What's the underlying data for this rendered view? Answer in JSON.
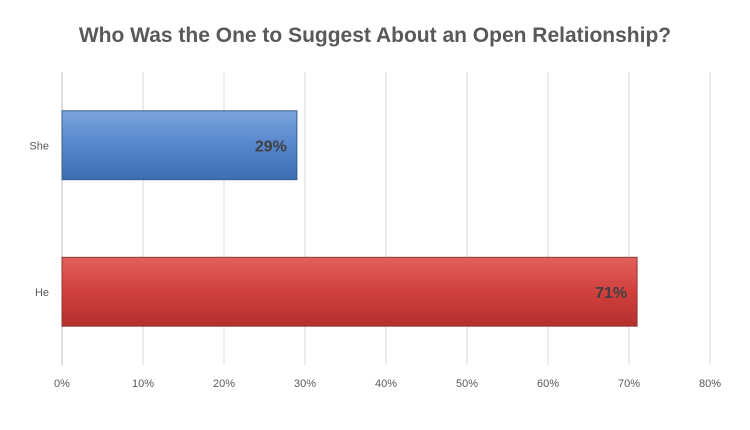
{
  "chart_data": {
    "type": "bar",
    "orientation": "horizontal",
    "title": "Who Was the One to Suggest About an Open Relationship?",
    "categories": [
      "She",
      "He"
    ],
    "values": [
      29,
      71
    ],
    "data_labels": [
      "29%",
      "71%"
    ],
    "bar_colors": [
      "#4F81BD",
      "#C0504D"
    ],
    "xlim": [
      0,
      80
    ],
    "x_ticks": [
      0,
      10,
      20,
      30,
      40,
      50,
      60,
      70,
      80
    ],
    "x_tick_labels": [
      "0%",
      "10%",
      "20%",
      "30%",
      "40%",
      "50%",
      "60%",
      "70%",
      "80%"
    ],
    "grid": true,
    "legend": "none"
  }
}
